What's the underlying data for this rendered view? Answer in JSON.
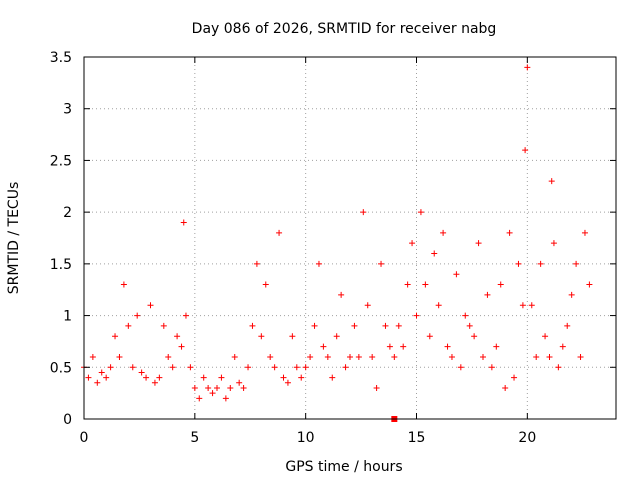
{
  "chart_data": {
    "type": "scatter",
    "title": "Day 086 of 2026, SRMTID for receiver nabg",
    "xlabel": "GPS time / hours",
    "ylabel": "SRMTID / TECUs",
    "xlim": [
      0,
      24
    ],
    "ylim": [
      0,
      3.5
    ],
    "xticks": [
      0,
      5,
      10,
      15,
      20
    ],
    "xtick_labels": [
      "0",
      "5",
      "10",
      "15",
      "20"
    ],
    "yticks": [
      0,
      0.5,
      1,
      1.5,
      2,
      2.5,
      3,
      3.5
    ],
    "ytick_labels": [
      "0",
      "0.5",
      "1",
      "1.5",
      "2",
      "2.5",
      "3",
      "3.5"
    ],
    "grid": true,
    "marker": "plus",
    "color": "#ff0000",
    "special_marker": {
      "x": 14.0,
      "y": 0.0,
      "marker": "square"
    },
    "series": [
      {
        "name": "SRMTID",
        "x": [
          0.0,
          0.2,
          0.4,
          0.6,
          0.8,
          1.0,
          1.2,
          1.4,
          1.6,
          1.8,
          2.0,
          2.2,
          2.4,
          2.6,
          2.8,
          3.0,
          3.2,
          3.4,
          3.6,
          3.8,
          4.0,
          4.2,
          4.4,
          4.5,
          4.6,
          4.8,
          5.0,
          5.2,
          5.4,
          5.6,
          5.8,
          6.0,
          6.2,
          6.4,
          6.6,
          6.8,
          7.0,
          7.2,
          7.4,
          7.6,
          7.8,
          8.0,
          8.2,
          8.4,
          8.6,
          8.8,
          9.0,
          9.2,
          9.4,
          9.6,
          9.8,
          10.0,
          10.2,
          10.4,
          10.6,
          10.8,
          11.0,
          11.2,
          11.4,
          11.6,
          11.8,
          12.0,
          12.2,
          12.4,
          12.6,
          12.8,
          13.0,
          13.2,
          13.4,
          13.6,
          13.8,
          14.0,
          14.2,
          14.4,
          14.6,
          14.8,
          15.0,
          15.2,
          15.4,
          15.6,
          15.8,
          16.0,
          16.2,
          16.4,
          16.6,
          16.8,
          17.0,
          17.2,
          17.4,
          17.6,
          17.8,
          18.0,
          18.2,
          18.4,
          18.6,
          18.8,
          19.0,
          19.2,
          19.4,
          19.6,
          19.8,
          19.9,
          20.0,
          20.2,
          20.4,
          20.6,
          20.8,
          21.0,
          21.1,
          21.2,
          21.4,
          21.6,
          21.8,
          22.0,
          22.2,
          22.4,
          22.6,
          22.8
        ],
        "y": [
          0.5,
          0.4,
          0.6,
          0.35,
          0.45,
          0.4,
          0.5,
          0.8,
          0.6,
          1.3,
          0.9,
          0.5,
          1.0,
          0.45,
          0.4,
          1.1,
          0.35,
          0.4,
          0.9,
          0.6,
          0.5,
          0.8,
          0.7,
          1.9,
          1.0,
          0.5,
          0.3,
          0.2,
          0.4,
          0.3,
          0.25,
          0.3,
          0.4,
          0.2,
          0.3,
          0.6,
          0.35,
          0.3,
          0.5,
          0.9,
          1.5,
          0.8,
          1.3,
          0.6,
          0.5,
          1.8,
          0.4,
          0.35,
          0.8,
          0.5,
          0.4,
          0.5,
          0.6,
          0.9,
          1.5,
          0.7,
          0.6,
          0.4,
          0.8,
          1.2,
          0.5,
          0.6,
          0.9,
          0.6,
          2.0,
          1.1,
          0.6,
          0.3,
          1.5,
          0.9,
          0.7,
          0.6,
          0.9,
          0.7,
          1.3,
          1.7,
          1.0,
          2.0,
          1.3,
          0.8,
          1.6,
          1.1,
          1.8,
          0.7,
          0.6,
          1.4,
          0.5,
          1.0,
          0.9,
          0.8,
          1.7,
          0.6,
          1.2,
          0.5,
          0.7,
          1.3,
          0.3,
          1.8,
          0.4,
          1.5,
          1.1,
          2.6,
          3.4,
          1.1,
          0.6,
          1.5,
          0.8,
          0.6,
          2.3,
          1.7,
          0.5,
          0.7,
          0.9,
          1.2,
          1.5,
          0.6,
          1.8,
          1.3
        ]
      }
    ]
  }
}
